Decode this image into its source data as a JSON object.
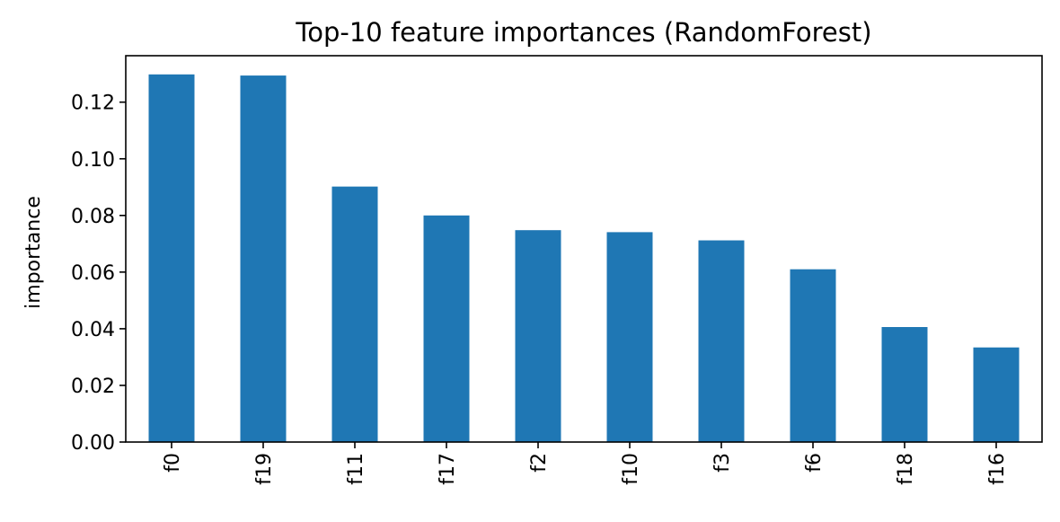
{
  "chart_data": {
    "type": "bar",
    "title": "Top-10 feature importances (RandomForest)",
    "xlabel": "",
    "ylabel": "importance",
    "categories": [
      "f0",
      "f19",
      "f11",
      "f17",
      "f2",
      "f10",
      "f3",
      "f6",
      "f18",
      "f16"
    ],
    "values": [
      0.1298,
      0.1294,
      0.0902,
      0.08,
      0.0748,
      0.0741,
      0.0712,
      0.061,
      0.0406,
      0.0334
    ],
    "ylim": [
      0,
      0.1364
    ],
    "yticks": [
      0.0,
      0.02,
      0.04,
      0.06,
      0.08,
      0.1,
      0.12
    ],
    "ytick_labels": [
      "0.00",
      "0.02",
      "0.04",
      "0.06",
      "0.08",
      "0.10",
      "0.12"
    ],
    "bar_color": "#1f77b4",
    "grid": false,
    "legend": "none"
  }
}
